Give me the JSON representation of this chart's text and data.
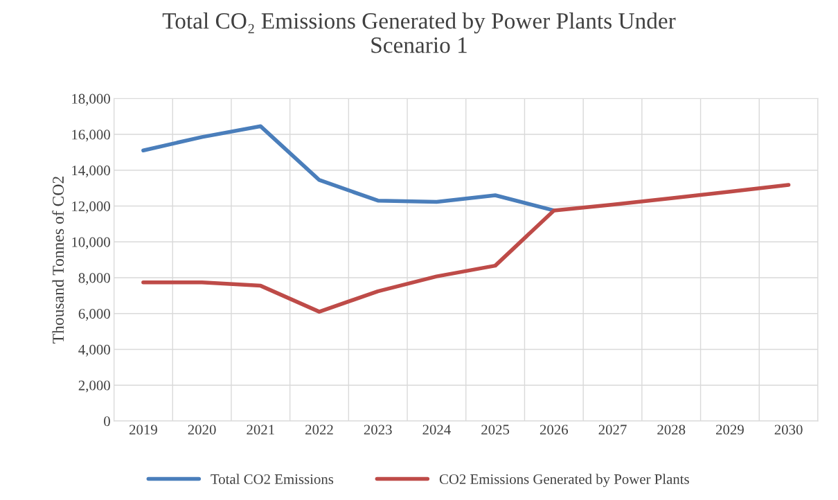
{
  "chart_data": {
    "type": "line",
    "title": "Total CO₂ Emissions Generated by Power Plants Under\nScenario 1",
    "ylabel": "Thousand Tonnes of CO2",
    "categories": [
      "2019",
      "2020",
      "2021",
      "2022",
      "2023",
      "2024",
      "2025",
      "2026",
      "2027",
      "2028",
      "2029",
      "2030"
    ],
    "series": [
      {
        "name": "Total CO2 Emissions",
        "color": "#4a7ebb",
        "values": [
          15100,
          15850,
          16450,
          13450,
          12300,
          12230,
          12600,
          11750,
          null,
          null,
          null,
          null
        ]
      },
      {
        "name": "CO2 Emissions Generated by Power Plants",
        "color": "#be4b48",
        "values": [
          7740,
          7740,
          7550,
          6100,
          7240,
          8070,
          8670,
          11750,
          12080,
          12430,
          12800,
          13180
        ]
      }
    ],
    "ylim": [
      0,
      18000
    ],
    "yticks": [
      {
        "value": 0,
        "label": "0"
      },
      {
        "value": 2000,
        "label": "2,000"
      },
      {
        "value": 4000,
        "label": "4,000"
      },
      {
        "value": 6000,
        "label": "6,000"
      },
      {
        "value": 8000,
        "label": "8,000"
      },
      {
        "value": 10000,
        "label": "10,000"
      },
      {
        "value": 12000,
        "label": "12,000"
      },
      {
        "value": 14000,
        "label": "14,000"
      },
      {
        "value": 16000,
        "label": "16,000"
      },
      {
        "value": 18000,
        "label": "18,000"
      }
    ],
    "grid": true,
    "legend": "bottom",
    "line_style": "solid",
    "marker": "none"
  }
}
